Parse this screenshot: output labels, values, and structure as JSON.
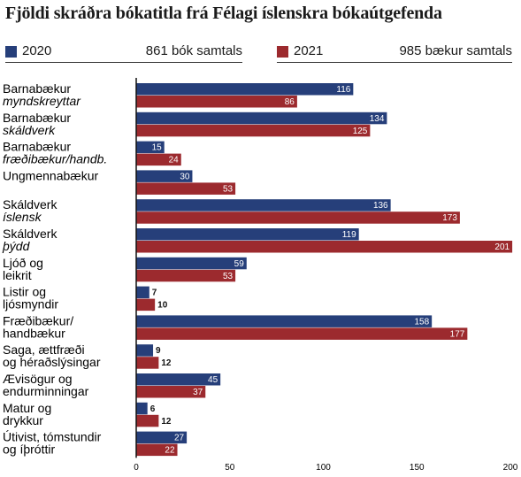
{
  "chart_data": {
    "type": "bar",
    "orientation": "horizontal",
    "title": "Fjöldi skráðra bókatitla frá Félagi íslenskra bókaútgefenda",
    "categories": [
      {
        "line1": "Barnabækur",
        "line2": "myndskreyttar",
        "line2_italic": true
      },
      {
        "line1": "Barnabækur",
        "line2": "skáldverk",
        "line2_italic": true
      },
      {
        "line1": "Barnabækur",
        "line2": "fræðibækur/handb.",
        "line2_italic": true
      },
      {
        "line1": "Ungmennabækur",
        "line2": "",
        "line2_italic": false
      },
      {
        "line1": "Skáldverk",
        "line2": "íslensk",
        "line2_italic": true
      },
      {
        "line1": "Skáldverk",
        "line2": "þýdd",
        "line2_italic": true
      },
      {
        "line1": "Ljóð og",
        "line2": "leikrit",
        "line2_italic": false
      },
      {
        "line1": "Listir og",
        "line2": "ljósmyndir",
        "line2_italic": false
      },
      {
        "line1": "Fræðibækur/",
        "line2": "handbækur",
        "line2_italic": false
      },
      {
        "line1": "Saga, ættfræði",
        "line2": "og héraðslýsingar",
        "line2_italic": false
      },
      {
        "line1": "Ævisögur og",
        "line2": "endurminningar",
        "line2_italic": false
      },
      {
        "line1": "Matur og",
        "line2": "drykkur",
        "line2_italic": false
      },
      {
        "line1": "Útivist, tómstundir",
        "line2": "og íþróttir",
        "line2_italic": false
      }
    ],
    "series": [
      {
        "name": "2020",
        "total_label": "861 bók samtals",
        "color": "#263f7a",
        "values": [
          116,
          134,
          15,
          30,
          136,
          119,
          59,
          7,
          158,
          9,
          45,
          6,
          27
        ]
      },
      {
        "name": "2021",
        "total_label": "985 bækur samtals",
        "color": "#9c2a2e",
        "values": [
          86,
          125,
          24,
          53,
          173,
          201,
          53,
          10,
          177,
          12,
          37,
          12,
          22
        ]
      }
    ],
    "xlim": [
      0,
      200
    ],
    "xticks": [
      0,
      50,
      100,
      150,
      200
    ],
    "grid": false,
    "legend_position": "top"
  }
}
